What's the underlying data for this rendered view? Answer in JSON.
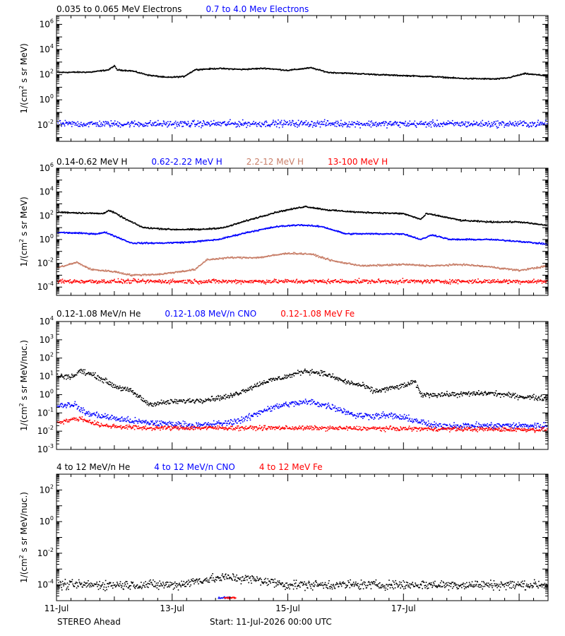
{
  "figure": {
    "spacecraft": "STEREO Ahead",
    "start_label": "Start: 11-Jul-2026 00:00 UTC"
  },
  "chart_data": [
    {
      "type": "scatter",
      "title": "",
      "ylabel_base": "1/(cm",
      "ylabel_sup": "2",
      "ylabel_rest": " s sr MeV)",
      "log_y": true,
      "ylim": [
        0.0005,
        5000000
      ],
      "y_ticks": [
        {
          "label": "10",
          "exp": "-2",
          "value": 0.01
        },
        {
          "label": "10",
          "exp": "0",
          "value": 1
        },
        {
          "label": "10",
          "exp": "2",
          "value": 100
        },
        {
          "label": "10",
          "exp": "4",
          "value": 10000
        },
        {
          "label": "10",
          "exp": "6",
          "value": 1000000
        }
      ],
      "series": [
        {
          "name": "0.035 to 0.065 MeV Electrons",
          "color": "#000000",
          "scatter": 0.04,
          "points": [
            [
              0,
              150
            ],
            [
              0.6,
              160
            ],
            [
              0.9,
              240
            ],
            [
              1.0,
              500
            ],
            [
              1.05,
              240
            ],
            [
              1.3,
              200
            ],
            [
              1.6,
              90
            ],
            [
              1.9,
              60
            ],
            [
              2.2,
              70
            ],
            [
              2.4,
              250
            ],
            [
              2.8,
              310
            ],
            [
              3.2,
              260
            ],
            [
              3.6,
              320
            ],
            [
              4.0,
              220
            ],
            [
              4.4,
              350
            ],
            [
              4.7,
              150
            ],
            [
              5.2,
              120
            ],
            [
              5.8,
              90
            ],
            [
              6.5,
              70
            ],
            [
              7.0,
              50
            ],
            [
              7.6,
              45
            ],
            [
              7.8,
              55
            ],
            [
              8.1,
              120
            ],
            [
              8.5,
              80
            ]
          ]
        },
        {
          "name": "0.7 to 4.0 Mev Electrons",
          "color": "#0000ff",
          "scatter": 0.22,
          "points": [
            [
              0,
              0.012
            ],
            [
              2,
              0.012
            ],
            [
              4,
              0.013
            ],
            [
              6,
              0.012
            ],
            [
              8,
              0.012
            ],
            [
              8.5,
              0.012
            ]
          ]
        }
      ]
    },
    {
      "type": "scatter",
      "title": "",
      "ylabel_base": "1/(cm",
      "ylabel_sup": "2",
      "ylabel_rest": " s sr MeV)",
      "log_y": true,
      "ylim": [
        2e-05,
        1000000
      ],
      "y_ticks": [
        {
          "label": "10",
          "exp": "-4",
          "value": 0.0001
        },
        {
          "label": "10",
          "exp": "-2",
          "value": 0.01
        },
        {
          "label": "10",
          "exp": "0",
          "value": 1
        },
        {
          "label": "10",
          "exp": "2",
          "value": 100
        },
        {
          "label": "10",
          "exp": "4",
          "value": 10000
        },
        {
          "label": "10",
          "exp": "6",
          "value": 1000000
        }
      ],
      "series": [
        {
          "name": "0.14-0.62 MeV H",
          "color": "#000000",
          "scatter": 0.05,
          "points": [
            [
              0,
              200
            ],
            [
              0.8,
              150
            ],
            [
              0.9,
              280
            ],
            [
              1.0,
              180
            ],
            [
              1.2,
              50
            ],
            [
              1.5,
              10
            ],
            [
              2.0,
              7
            ],
            [
              2.5,
              7
            ],
            [
              2.9,
              10
            ],
            [
              3.3,
              40
            ],
            [
              3.8,
              200
            ],
            [
              4.3,
              600
            ],
            [
              4.7,
              300
            ],
            [
              5.2,
              200
            ],
            [
              6.0,
              150
            ],
            [
              6.3,
              50
            ],
            [
              6.4,
              150
            ],
            [
              6.6,
              100
            ],
            [
              7.0,
              40
            ],
            [
              7.5,
              30
            ],
            [
              8.0,
              30
            ],
            [
              8.5,
              15
            ]
          ]
        },
        {
          "name": "0.62-2.22 MeV H",
          "color": "#0000ff",
          "scatter": 0.05,
          "points": [
            [
              0,
              4
            ],
            [
              0.7,
              3
            ],
            [
              0.85,
              4
            ],
            [
              1.0,
              2
            ],
            [
              1.3,
              0.5
            ],
            [
              1.8,
              0.5
            ],
            [
              2.3,
              0.6
            ],
            [
              2.8,
              1
            ],
            [
              3.3,
              4
            ],
            [
              3.8,
              12
            ],
            [
              4.2,
              17
            ],
            [
              4.6,
              12
            ],
            [
              5.0,
              3
            ],
            [
              5.5,
              3
            ],
            [
              6.0,
              3
            ],
            [
              6.3,
              1
            ],
            [
              6.5,
              2.5
            ],
            [
              6.8,
              1
            ],
            [
              7.5,
              1
            ],
            [
              8.0,
              0.7
            ],
            [
              8.5,
              0.4
            ]
          ]
        },
        {
          "name": "2.2-12 MeV H",
          "color": "#c87e68",
          "scatter": 0.06,
          "points": [
            [
              0,
              0.004
            ],
            [
              0.35,
              0.012
            ],
            [
              0.6,
              0.003
            ],
            [
              1.0,
              0.002
            ],
            [
              1.3,
              0.001
            ],
            [
              1.8,
              0.0012
            ],
            [
              2.4,
              0.003
            ],
            [
              2.6,
              0.02
            ],
            [
              3.0,
              0.03
            ],
            [
              3.5,
              0.03
            ],
            [
              4.0,
              0.07
            ],
            [
              4.4,
              0.06
            ],
            [
              4.8,
              0.015
            ],
            [
              5.3,
              0.006
            ],
            [
              6.0,
              0.008
            ],
            [
              6.5,
              0.006
            ],
            [
              7.0,
              0.008
            ],
            [
              7.5,
              0.005
            ],
            [
              8.0,
              0.0025
            ],
            [
              8.5,
              0.006
            ]
          ]
        },
        {
          "name": "13-100 MeV H",
          "color": "#ff0000",
          "scatter": 0.15,
          "points": [
            [
              0,
              0.0003
            ],
            [
              8.5,
              0.0003
            ]
          ]
        }
      ]
    },
    {
      "type": "scatter",
      "title": "",
      "ylabel_base": "1/(cm",
      "ylabel_sup": "2",
      "ylabel_rest": " s sr MeV/nuc.)",
      "log_y": true,
      "ylim": [
        0.001,
        10000
      ],
      "y_ticks": [
        {
          "label": "10",
          "exp": "-3",
          "value": 0.001
        },
        {
          "label": "10",
          "exp": "-2",
          "value": 0.01
        },
        {
          "label": "10",
          "exp": "-1",
          "value": 0.1
        },
        {
          "label": "10",
          "exp": "0",
          "value": 1
        },
        {
          "label": "10",
          "exp": "1",
          "value": 10
        },
        {
          "label": "10",
          "exp": "2",
          "value": 100
        },
        {
          "label": "10",
          "exp": "3",
          "value": 1000
        },
        {
          "label": "10",
          "exp": "4",
          "value": 10000
        }
      ],
      "series": [
        {
          "name": "0.12-1.08 MeV/n He",
          "color": "#000000",
          "scatter": 0.12,
          "points": [
            [
              0,
              10
            ],
            [
              0.3,
              10
            ],
            [
              0.4,
              20
            ],
            [
              0.7,
              10
            ],
            [
              1.0,
              3
            ],
            [
              1.3,
              1.5
            ],
            [
              1.6,
              0.3
            ],
            [
              2.0,
              0.4
            ],
            [
              2.5,
              0.5
            ],
            [
              3.0,
              0.8
            ],
            [
              3.3,
              2
            ],
            [
              3.6,
              5
            ],
            [
              4.0,
              10
            ],
            [
              4.3,
              20
            ],
            [
              4.6,
              15
            ],
            [
              5.0,
              5
            ],
            [
              5.3,
              3
            ],
            [
              5.5,
              1.5
            ],
            [
              6.0,
              3
            ],
            [
              6.2,
              5
            ],
            [
              6.3,
              1
            ],
            [
              6.8,
              1
            ],
            [
              7.5,
              1.2
            ],
            [
              8.0,
              0.8
            ],
            [
              8.5,
              0.6
            ]
          ]
        },
        {
          "name": "0.12-1.08 MeV/n CNO",
          "color": "#0000ff",
          "scatter": 0.15,
          "points": [
            [
              0,
              0.25
            ],
            [
              0.3,
              0.3
            ],
            [
              0.5,
              0.1
            ],
            [
              1.0,
              0.05
            ],
            [
              1.5,
              0.03
            ],
            [
              2.5,
              0.02
            ],
            [
              3.0,
              0.03
            ],
            [
              3.3,
              0.05
            ],
            [
              3.6,
              0.15
            ],
            [
              4.0,
              0.3
            ],
            [
              4.4,
              0.4
            ],
            [
              4.8,
              0.2
            ],
            [
              5.2,
              0.07
            ],
            [
              5.8,
              0.07
            ],
            [
              6.2,
              0.04
            ],
            [
              6.5,
              0.02
            ],
            [
              8.5,
              0.02
            ]
          ]
        },
        {
          "name": "0.12-1.08 MeV Fe",
          "color": "#ff0000",
          "scatter": 0.1,
          "points": [
            [
              0,
              0.03
            ],
            [
              0.4,
              0.05
            ],
            [
              0.8,
              0.02
            ],
            [
              1.5,
              0.015
            ],
            [
              4.0,
              0.015
            ],
            [
              8.5,
              0.012
            ]
          ]
        }
      ]
    },
    {
      "type": "scatter",
      "title": "",
      "ylabel_base": "1/(cm",
      "ylabel_sup": "2",
      "ylabel_rest": " s sr MeV/nuc.)",
      "log_y": true,
      "ylim": [
        1e-05,
        1000
      ],
      "y_ticks": [
        {
          "label": "10",
          "exp": "-4",
          "value": 0.0001
        },
        {
          "label": "10",
          "exp": "-2",
          "value": 0.01
        },
        {
          "label": "10",
          "exp": "0",
          "value": 1
        },
        {
          "label": "10",
          "exp": "2",
          "value": 100
        }
      ],
      "series": [
        {
          "name": "4 to 12 MeV/n He",
          "color": "#000000",
          "scatter": 0.25,
          "points": [
            [
              0,
              0.0001
            ],
            [
              2.1,
              0.0001
            ],
            [
              2.5,
              0.0002
            ],
            [
              3.0,
              0.0003
            ],
            [
              3.5,
              0.0002
            ],
            [
              4.0,
              0.0001
            ],
            [
              8.5,
              0.0001
            ]
          ]
        },
        {
          "name": "4 to 12 MeV/n CNO",
          "color": "#0000ff",
          "scatter": 0.05,
          "points": [
            [
              2.8,
              1.5e-05
            ],
            [
              3.0,
              1.5e-05
            ]
          ]
        },
        {
          "name": "4 to 12 MeV Fe",
          "color": "#ff0000",
          "scatter": 0.05,
          "points": [
            [
              2.9,
              1.5e-05
            ],
            [
              3.1,
              1.5e-05
            ]
          ]
        }
      ]
    }
  ],
  "x_axis": {
    "range": [
      0,
      8.5
    ],
    "ticks": [
      {
        "value": 0,
        "label": "11-Jul"
      },
      {
        "value": 2,
        "label": "13-Jul"
      },
      {
        "value": 4,
        "label": "15-Jul"
      },
      {
        "value": 6,
        "label": "17-Jul"
      }
    ],
    "minor_step": 0.25
  }
}
